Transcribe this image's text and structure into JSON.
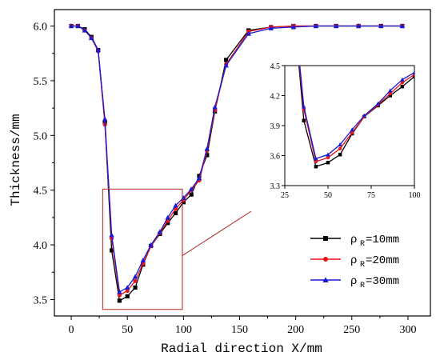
{
  "chart_data": {
    "type": "line",
    "xlabel": "Radial direction X/mm",
    "ylabel": "Thickness/mm",
    "xlim": [
      -15,
      320
    ],
    "ylim": [
      3.35,
      6.15
    ],
    "xticks": [
      0,
      50,
      100,
      150,
      200,
      250,
      300
    ],
    "yticks": [
      3.5,
      4.0,
      4.5,
      5.0,
      5.5,
      6.0
    ],
    "series": [
      {
        "name_symbol": "ρ",
        "name_sub": "R",
        "name_rest": "=10mm",
        "color": "#000000",
        "marker": "square",
        "x": [
          0,
          6,
          12,
          18,
          24,
          30,
          36,
          43,
          50,
          57,
          64,
          71,
          79,
          86,
          93,
          100,
          107,
          114,
          121,
          128,
          138,
          158,
          178,
          198,
          218,
          236,
          256,
          276,
          295
        ],
        "y": [
          6.0,
          6.0,
          5.97,
          5.9,
          5.78,
          5.12,
          3.95,
          3.49,
          3.53,
          3.61,
          3.82,
          3.99,
          4.1,
          4.2,
          4.29,
          4.39,
          4.46,
          4.63,
          4.82,
          5.22,
          5.69,
          5.96,
          5.99,
          6.0,
          6.0,
          6.0,
          6.0,
          6.0,
          6.0
        ]
      },
      {
        "name_symbol": "ρ",
        "name_sub": "R",
        "name_rest": "=20mm",
        "color": "#e8141c",
        "marker": "circle",
        "x": [
          0,
          6,
          12,
          18,
          24,
          30,
          36,
          43,
          50,
          57,
          64,
          71,
          79,
          86,
          93,
          100,
          107,
          114,
          121,
          128,
          138,
          158,
          178,
          198,
          218,
          236,
          256,
          276,
          295
        ],
        "y": [
          6.0,
          6.0,
          5.96,
          5.89,
          5.77,
          5.1,
          4.06,
          3.54,
          3.58,
          3.67,
          3.83,
          3.99,
          4.11,
          4.22,
          4.33,
          4.41,
          4.5,
          4.59,
          4.86,
          5.23,
          5.65,
          5.95,
          5.99,
          6.0,
          6.0,
          6.0,
          6.0,
          6.0,
          6.0
        ]
      },
      {
        "name_symbol": "ρ",
        "name_sub": "R",
        "name_rest": "=30mm",
        "color": "#1a1ad6",
        "marker": "triangle",
        "x": [
          0,
          6,
          12,
          18,
          24,
          30,
          36,
          43,
          50,
          57,
          64,
          71,
          79,
          86,
          93,
          100,
          107,
          114,
          121,
          128,
          138,
          158,
          178,
          198,
          218,
          236,
          256,
          276,
          295
        ],
        "y": [
          6.0,
          6.0,
          5.96,
          5.89,
          5.78,
          5.15,
          4.09,
          3.57,
          3.61,
          3.71,
          3.86,
          4.0,
          4.12,
          4.25,
          4.36,
          4.43,
          4.51,
          4.61,
          4.88,
          5.26,
          5.64,
          5.93,
          5.98,
          5.99,
          6.0,
          6.0,
          6.0,
          6.0,
          6.0
        ]
      }
    ],
    "inset": {
      "xlim": [
        25,
        100
      ],
      "ylim": [
        3.3,
        4.5
      ],
      "xticks": [
        25,
        50,
        75,
        100
      ],
      "yticks": [
        3.3,
        3.6,
        3.9,
        4.2,
        4.5
      ],
      "zoom_box": {
        "x": [
          28,
          99
        ],
        "y": [
          3.41,
          4.51
        ]
      }
    },
    "legend_position": "bottom-right",
    "grid": false
  }
}
